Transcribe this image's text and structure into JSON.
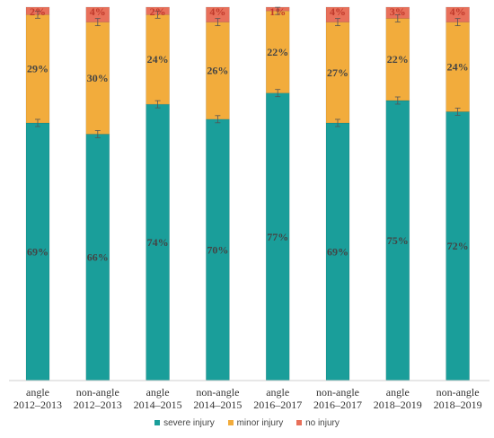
{
  "chart_data": {
    "type": "bar",
    "stacked": true,
    "normalized": true,
    "categories": [
      [
        "angle",
        "2012–2013"
      ],
      [
        "non-angle",
        "2012–2013"
      ],
      [
        "angle",
        "2014–2015"
      ],
      [
        "non-angle",
        "2014–2015"
      ],
      [
        "angle",
        "2016–2017"
      ],
      [
        "non-angle",
        "2016–2017"
      ],
      [
        "angle",
        "2018–2019"
      ],
      [
        "non-angle",
        "2018–2019"
      ]
    ],
    "series": [
      {
        "name": "severe injury",
        "color": "#1a9e9a",
        "label_color": "#444444",
        "values": [
          69,
          66,
          74,
          70,
          77,
          69,
          75,
          72
        ]
      },
      {
        "name": "minor injury",
        "color": "#f2ac3c",
        "label_color": "#444444",
        "values": [
          29,
          30,
          24,
          26,
          22,
          27,
          22,
          24
        ]
      },
      {
        "name": "no injury",
        "color": "#e8705a",
        "label_color": "#c0392b",
        "values": [
          2,
          4,
          2,
          4,
          1,
          4,
          3,
          4
        ]
      }
    ],
    "ylim": [
      0,
      100
    ],
    "grid": false,
    "error_bars": true,
    "legend_position": "bottom"
  }
}
